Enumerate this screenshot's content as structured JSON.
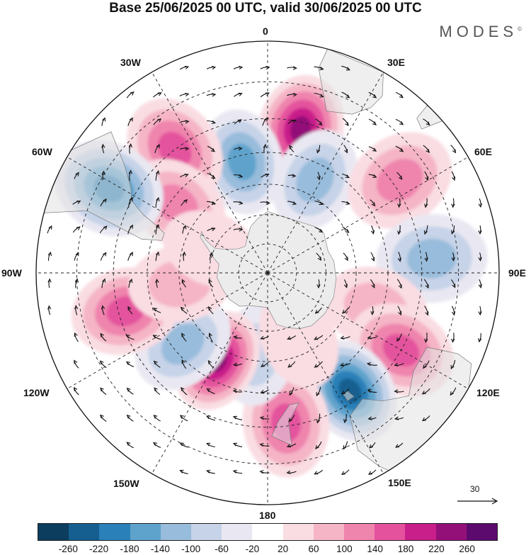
{
  "title": "Base 25/06/2025 00 UTC, valid 30/06/2025 00 UTC",
  "brand": "MODES",
  "brand_mark": "©",
  "longitude_labels": {
    "0": "0",
    "30E": "30E",
    "60E": "60E",
    "90E": "90E",
    "120E": "120E",
    "150E": "150E",
    "180": "180",
    "150W": "150W",
    "120W": "120W",
    "90W": "90W",
    "60W": "60W",
    "30W": "30W"
  },
  "projection": "south-polar-stereographic",
  "reference_vector": {
    "label": "30",
    "icon": "right-arrow-icon"
  },
  "colorbar": {
    "colors": [
      "#0c3d5e",
      "#145f8f",
      "#2a80b8",
      "#5ea3cc",
      "#98bcdb",
      "#c6d3e8",
      "#e9e8f2",
      "#ffffff",
      "#f9dde3",
      "#f5b5c6",
      "#ef84ad",
      "#e4529d",
      "#c91f8b",
      "#931078",
      "#5c0a6e"
    ],
    "ticks": [
      "-260",
      "-220",
      "-180",
      "-140",
      "-100",
      "-60",
      "-20",
      "20",
      "60",
      "100",
      "140",
      "180",
      "220",
      "260"
    ]
  },
  "anomalies": [
    {
      "lon": 13,
      "lat": -42,
      "value": 250
    },
    {
      "lon": -13,
      "lat": -52,
      "value": -160
    },
    {
      "lon": -37,
      "lat": -40,
      "value": 150
    },
    {
      "lon": -53,
      "lat": -52,
      "value": 130
    },
    {
      "lon": -62,
      "lat": -33,
      "value": -210
    },
    {
      "lon": 27,
      "lat": -55,
      "value": -130
    },
    {
      "lon": 55,
      "lat": -38,
      "value": 110
    },
    {
      "lon": 85,
      "lat": -37,
      "value": -120
    },
    {
      "lon": 108,
      "lat": -52,
      "value": 90
    },
    {
      "lon": 120,
      "lat": -40,
      "value": 170
    },
    {
      "lon": 145,
      "lat": -43,
      "value": -230
    },
    {
      "lon": 173,
      "lat": -41,
      "value": 150
    },
    {
      "lon": -172,
      "lat": -62,
      "value": -80
    },
    {
      "lon": -150,
      "lat": -56,
      "value": 240
    },
    {
      "lon": -130,
      "lat": -53,
      "value": -140
    },
    {
      "lon": -105,
      "lat": -42,
      "value": 160
    },
    {
      "lon": -97,
      "lat": -60,
      "value": 60
    },
    {
      "lon": -67,
      "lat": -69,
      "value": 40
    },
    {
      "lon": 155,
      "lat": -65,
      "value": 40
    }
  ]
}
